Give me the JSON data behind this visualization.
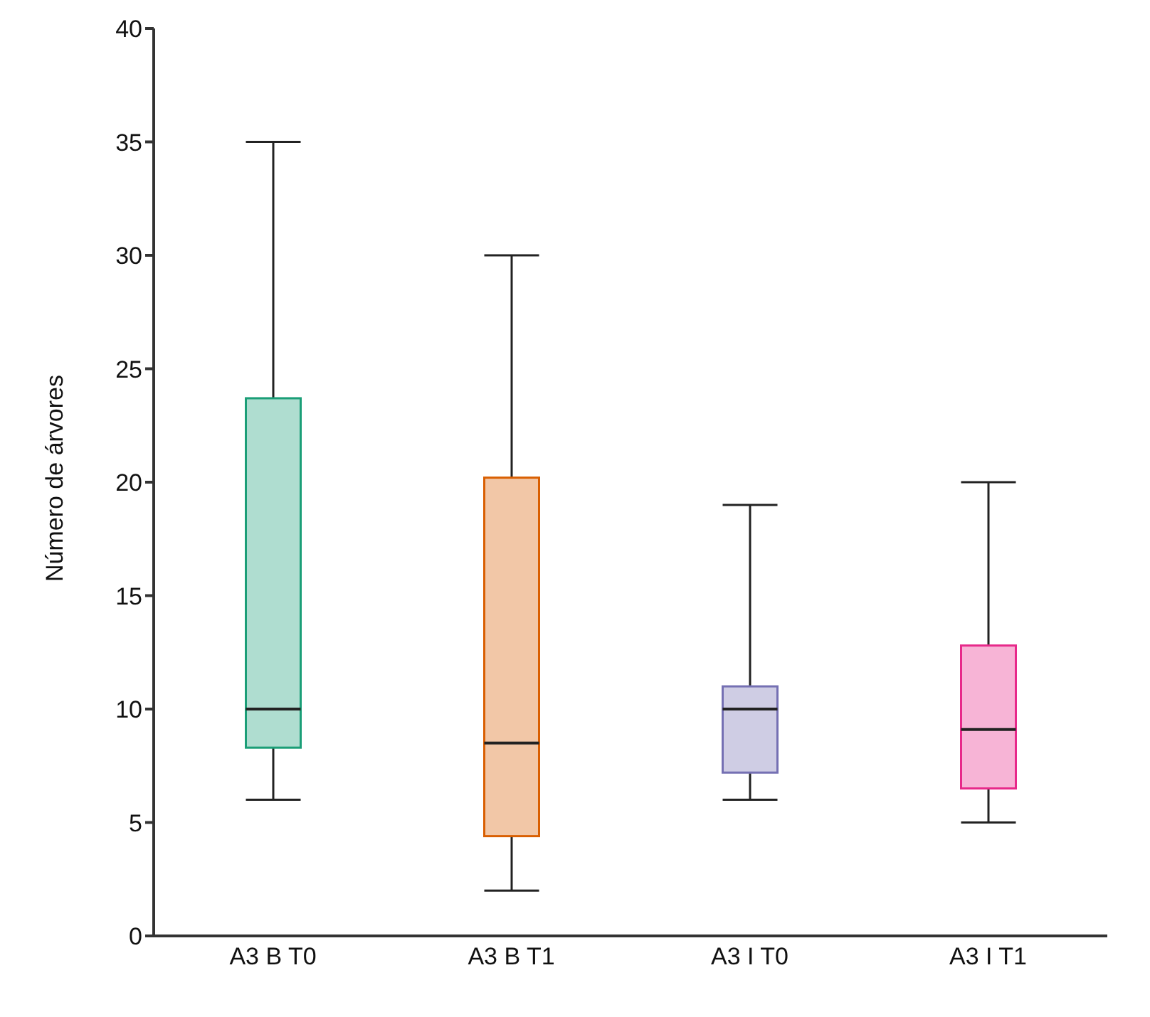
{
  "chart_data": {
    "type": "box",
    "ylabel": "Número de árvores",
    "categories": [
      "A3 B T0",
      "A3 B T1",
      "A3 I T0",
      "A3 I T1"
    ],
    "boxes": [
      {
        "low": 6,
        "q1": 8.3,
        "median": 10,
        "q3": 23.7,
        "high": 35
      },
      {
        "low": 2,
        "q1": 4.4,
        "median": 8.5,
        "q3": 20.2,
        "high": 30
      },
      {
        "low": 6,
        "q1": 7.2,
        "median": 10,
        "q3": 11,
        "high": 19
      },
      {
        "low": 5,
        "q1": 6.5,
        "median": 9.1,
        "q3": 12.8,
        "high": 20
      }
    ],
    "colors": [
      "#1b9e77",
      "#d95f02",
      "#7570b3",
      "#e7298a"
    ],
    "ylim": [
      0,
      40
    ],
    "yticks": [
      0,
      5,
      10,
      15,
      20,
      25,
      30,
      35,
      40
    ],
    "grid": false
  }
}
